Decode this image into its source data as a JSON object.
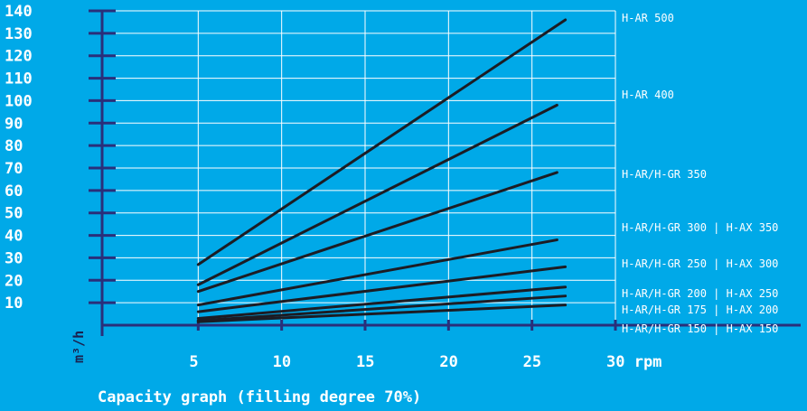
{
  "colors": {
    "background": "#00a9e8",
    "axis": "#2a2f7a",
    "grid": "#ffffff",
    "line": "#1c1c24",
    "text": "#ffffff"
  },
  "chart_data": {
    "type": "line",
    "caption": "Capacity graph (filling degree 70%)",
    "ylabel": "m³/h",
    "xlabel": "",
    "x_unit": "rpm",
    "xlim": [
      0,
      30
    ],
    "ylim": [
      0,
      140
    ],
    "x_ticks": [
      "5",
      "10",
      "15",
      "20",
      "25",
      "30 rpm"
    ],
    "y_ticks": [
      "10",
      "20",
      "30",
      "40",
      "50",
      "60",
      "70",
      "80",
      "90",
      "100",
      "110",
      "120",
      "130",
      "140"
    ],
    "grid": true,
    "series": [
      {
        "name": "H-AR 500",
        "x": [
          5,
          27
        ],
        "y": [
          27,
          136
        ]
      },
      {
        "name": "H-AR 400",
        "x": [
          5,
          26.5
        ],
        "y": [
          18,
          98
        ]
      },
      {
        "name": "H-AR/H-GR 350",
        "x": [
          5,
          26.5
        ],
        "y": [
          15,
          68
        ]
      },
      {
        "name": "H-AR/H-GR 300 | H-AX 350",
        "x": [
          5,
          26.5
        ],
        "y": [
          9,
          38
        ]
      },
      {
        "name": "H-AR/H-GR 250 | H-AX 300",
        "x": [
          5,
          27
        ],
        "y": [
          6,
          26
        ]
      },
      {
        "name": "H-AR/H-GR 200 | H-AX 250",
        "x": [
          5,
          27
        ],
        "y": [
          3,
          17
        ]
      },
      {
        "name": "H-AR/H-GR 175 | H-AX 200",
        "x": [
          5,
          27
        ],
        "y": [
          2,
          13
        ]
      },
      {
        "name": "H-AR/H-GR 150 | H-AX 150",
        "x": [
          5,
          27
        ],
        "y": [
          1.5,
          9
        ]
      }
    ]
  }
}
